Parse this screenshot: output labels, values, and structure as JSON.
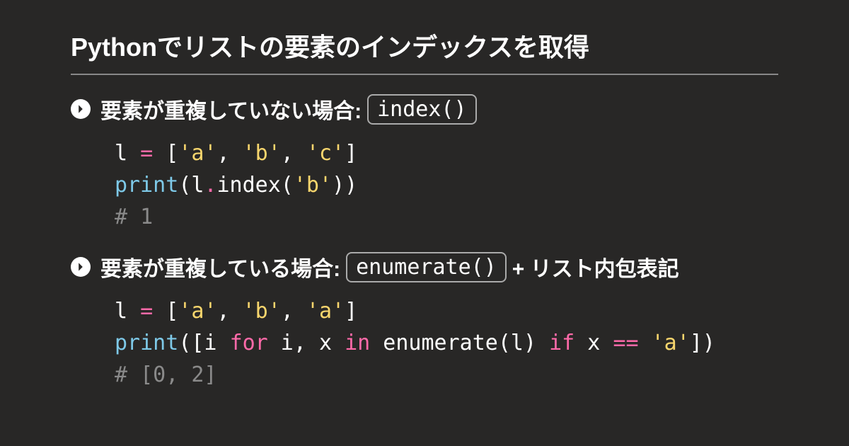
{
  "colors": {
    "background": "#282726",
    "text": "#ffffff",
    "comment": "#8a8a8a",
    "string": "#f8d66d",
    "keyword_builtin": "#7ec9e8",
    "keyword_flow": "#ff6aa9",
    "punct_highlight": "#ff6aa9",
    "title_fontsize": 36,
    "section_fontsize": 30,
    "code_fontsize": 30
  },
  "title": "Pythonでリストの要素のインデックスを取得",
  "sections": [
    {
      "head_pre": "要素が重複していない場合: ",
      "head_code": "index()",
      "head_post": "",
      "code": [
        [
          {
            "t": "l ",
            "c": "text"
          },
          {
            "t": "=",
            "c": "punct_highlight"
          },
          {
            "t": " [",
            "c": "text"
          },
          {
            "t": "'a'",
            "c": "string"
          },
          {
            "t": ", ",
            "c": "text"
          },
          {
            "t": "'b'",
            "c": "string"
          },
          {
            "t": ", ",
            "c": "text"
          },
          {
            "t": "'c'",
            "c": "string"
          },
          {
            "t": "]",
            "c": "text"
          }
        ],
        [
          {
            "t": "print",
            "c": "keyword_builtin"
          },
          {
            "t": "(l",
            "c": "text"
          },
          {
            "t": ".",
            "c": "punct_highlight"
          },
          {
            "t": "index(",
            "c": "text"
          },
          {
            "t": "'b'",
            "c": "string"
          },
          {
            "t": "))",
            "c": "text"
          }
        ],
        [
          {
            "t": "# 1",
            "c": "comment"
          }
        ]
      ]
    },
    {
      "head_pre": "要素が重複している場合: ",
      "head_code": "enumerate()",
      "head_post": " + リスト内包表記",
      "code": [
        [
          {
            "t": "l ",
            "c": "text"
          },
          {
            "t": "=",
            "c": "punct_highlight"
          },
          {
            "t": " [",
            "c": "text"
          },
          {
            "t": "'a'",
            "c": "string"
          },
          {
            "t": ", ",
            "c": "text"
          },
          {
            "t": "'b'",
            "c": "string"
          },
          {
            "t": ", ",
            "c": "text"
          },
          {
            "t": "'a'",
            "c": "string"
          },
          {
            "t": "]",
            "c": "text"
          }
        ],
        [
          {
            "t": "print",
            "c": "keyword_builtin"
          },
          {
            "t": "([i ",
            "c": "text"
          },
          {
            "t": "for",
            "c": "keyword_flow"
          },
          {
            "t": " i, x ",
            "c": "text"
          },
          {
            "t": "in",
            "c": "keyword_flow"
          },
          {
            "t": " enumerate(l) ",
            "c": "text"
          },
          {
            "t": "if",
            "c": "keyword_flow"
          },
          {
            "t": " x ",
            "c": "text"
          },
          {
            "t": "==",
            "c": "punct_highlight"
          },
          {
            "t": " ",
            "c": "text"
          },
          {
            "t": "'a'",
            "c": "string"
          },
          {
            "t": "])",
            "c": "text"
          }
        ],
        [
          {
            "t": "# [0, 2]",
            "c": "comment"
          }
        ]
      ]
    }
  ]
}
